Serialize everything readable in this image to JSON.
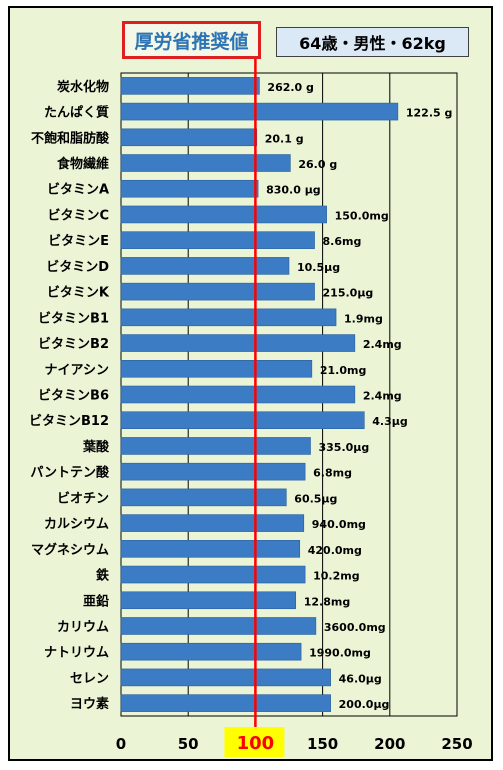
{
  "header": {
    "title": "厚労省推奨値",
    "profile": "64歳・男性・62kg"
  },
  "colors": {
    "background": "#ebf5d6",
    "bar": "#3b7cc4",
    "reference_line": "#ff0000",
    "reference_label_bg": "#ffff00"
  },
  "chart_data": {
    "type": "bar",
    "orientation": "horizontal",
    "title": "厚労省推奨値",
    "subtitle": "64歳・男性・62kg",
    "xlim": [
      0,
      250
    ],
    "x_ticks": [
      "0",
      "50",
      "100",
      "150",
      "200",
      "250"
    ],
    "reference_line": {
      "value": 100,
      "label": "100"
    },
    "grid": "vertical",
    "categories": [
      "炭水化物",
      "たんぱく質",
      "不飽和脂肪酸",
      "食物繊維",
      "ビタミンA",
      "ビタミンC",
      "ビタミンE",
      "ビタミンD",
      "ビタミンK",
      "ビタミンB1",
      "ビタミンB2",
      "ナイアシン",
      "ビタミンB6",
      "ビタミンB12",
      "葉酸",
      "パントテン酸",
      "ビオチン",
      "カルシウム",
      "マグネシウム",
      "鉄",
      "亜鉛",
      "カリウム",
      "ナトリウム",
      "セレン",
      "ヨウ素"
    ],
    "values": [
      103,
      206,
      101,
      126,
      102,
      153,
      144,
      125,
      144,
      160,
      174,
      142,
      174,
      181,
      141,
      137,
      123,
      136,
      133,
      137,
      130,
      145,
      134,
      156,
      156
    ],
    "data_labels": [
      "262.0 g",
      "122.5 g",
      "20.1 g",
      "26.0 g",
      "830.0 μg",
      "150.0mg",
      "8.6mg",
      "10.5μg",
      "215.0μg",
      "1.9mg",
      "2.4mg",
      "21.0mg",
      "2.4mg",
      "4.3μg",
      "335.0μg",
      "6.8mg",
      "60.5μg",
      "940.0mg",
      "420.0mg",
      "10.2mg",
      "12.8mg",
      "3600.0mg",
      "1990.0mg",
      "46.0μg",
      "200.0μg"
    ]
  }
}
